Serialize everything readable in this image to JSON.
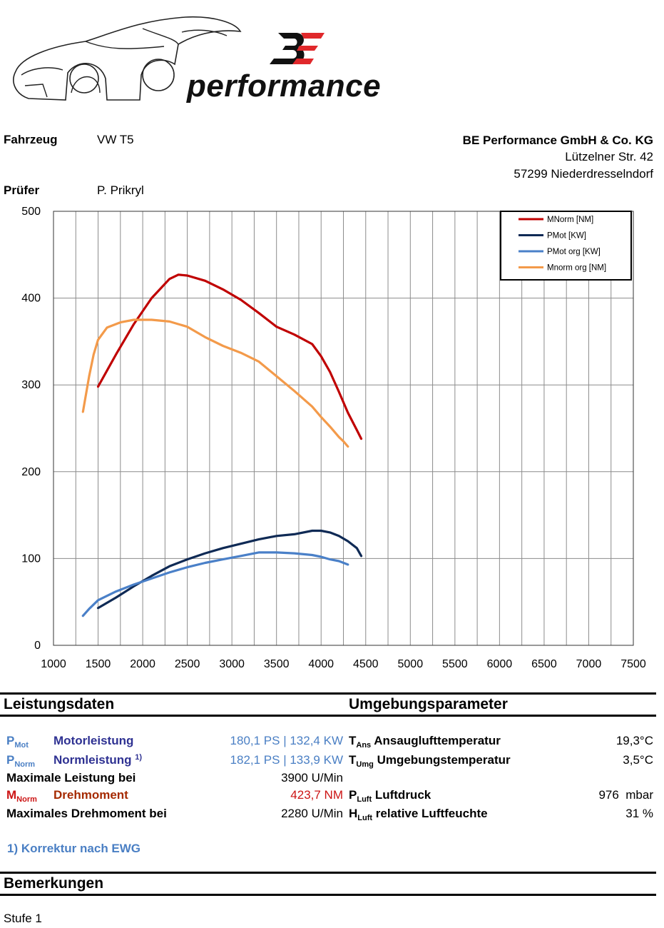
{
  "header": {
    "vehicle_label": "Fahrzeug",
    "vehicle_value": "VW T5",
    "tester_label": "Prüfer",
    "tester_value": "P. Prikryl",
    "company_name": "BE Performance GmbH & Co. KG",
    "company_street": "Lützelner Str. 42",
    "company_city": "57299 Niederdresselndorf",
    "logo_text": "performance",
    "logo_mark": "BE"
  },
  "chart_data": {
    "type": "line",
    "title": "",
    "xlabel": "",
    "ylabel": "",
    "xlim": [
      1000,
      7500
    ],
    "ylim": [
      0,
      500
    ],
    "x_ticks": [
      "1000",
      "1500",
      "2000",
      "2500",
      "3000",
      "3500",
      "4000",
      "4500",
      "5000",
      "5500",
      "6000",
      "6500",
      "7000",
      "7500"
    ],
    "y_ticks": [
      "0",
      "100",
      "200",
      "300",
      "400",
      "500"
    ],
    "grid": true,
    "legend_position": "top-right",
    "series": [
      {
        "name": "MNorm [NM]",
        "color": "#c00000",
        "x": [
          1500,
          1700,
          1900,
          2100,
          2300,
          2400,
          2500,
          2700,
          2900,
          3100,
          3300,
          3500,
          3700,
          3900,
          4000,
          4100,
          4200,
          4300,
          4400,
          4450
        ],
        "y": [
          298,
          335,
          370,
          400,
          422,
          427,
          426,
          420,
          410,
          398,
          383,
          367,
          358,
          347,
          333,
          315,
          292,
          268,
          248,
          238
        ]
      },
      {
        "name": "PMot [KW]",
        "color": "#0f2a55",
        "x": [
          1500,
          1700,
          1900,
          2100,
          2300,
          2500,
          2700,
          2900,
          3100,
          3300,
          3500,
          3700,
          3900,
          4000,
          4100,
          4200,
          4300,
          4400,
          4450
        ],
        "y": [
          43,
          55,
          68,
          80,
          91,
          99,
          106,
          112,
          117,
          122,
          126,
          128,
          132,
          132,
          130,
          126,
          120,
          112,
          103
        ]
      },
      {
        "name": "PMot org [KW]",
        "color": "#4a80c8",
        "x": [
          1330,
          1400,
          1500,
          1700,
          1900,
          2100,
          2300,
          2500,
          2700,
          2900,
          3100,
          3300,
          3500,
          3700,
          3900,
          4000,
          4100,
          4200,
          4300
        ],
        "y": [
          34,
          42,
          52,
          62,
          70,
          77,
          84,
          90,
          95,
          99,
          103,
          107,
          107,
          106,
          104,
          102,
          99,
          97,
          93
        ]
      },
      {
        "name": "Mnorm org [NM]",
        "color": "#f39a4a",
        "x": [
          1330,
          1400,
          1450,
          1500,
          1600,
          1750,
          1900,
          2100,
          2300,
          2500,
          2700,
          2900,
          3100,
          3300,
          3500,
          3700,
          3900,
          4000,
          4100,
          4200,
          4250,
          4300
        ],
        "y": [
          269,
          310,
          335,
          352,
          366,
          372,
          375,
          375,
          373,
          367,
          355,
          345,
          337,
          327,
          310,
          293,
          275,
          263,
          252,
          240,
          235,
          229
        ]
      }
    ]
  },
  "performance": {
    "title": "Leistungsdaten",
    "rows": [
      {
        "sym": "P",
        "sub": "Mot",
        "label": "Motorleistung",
        "value": "180,1 PS | 132,4 KW"
      },
      {
        "sym": "P",
        "sub": "Norm",
        "label": "Normleistung",
        "sup": "1)",
        "value": "182,1 PS | 133,9 KW"
      },
      {
        "label": "Maximale Leistung bei",
        "value": "3900 U/Min"
      },
      {
        "sym": "M",
        "sub": "Norm",
        "label": "Drehmoment",
        "value": "423,7 NM"
      },
      {
        "label": "Maximales Drehmoment bei",
        "value": "2280 U/Min"
      }
    ],
    "footnote": "1) Korrektur nach EWG"
  },
  "environment": {
    "title": "Umgebungsparameter",
    "rows": [
      {
        "sym": "T",
        "sub": "Ans",
        "label": "Ansauglufttemperatur",
        "value": "19,3°C"
      },
      {
        "sym": "T",
        "sub": "Umg",
        "label": "Umgebungstemperatur",
        "value": "3,5°C"
      },
      {
        "sym": "P",
        "sub": "Luft",
        "label": "Luftdruck",
        "value": "976  mbar"
      },
      {
        "sym": "H",
        "sub": "Luft",
        "label": "relative Luftfeuchte",
        "value": "31 %"
      }
    ]
  },
  "remarks": {
    "title": "Bemerkungen",
    "text": "Stufe 1"
  }
}
